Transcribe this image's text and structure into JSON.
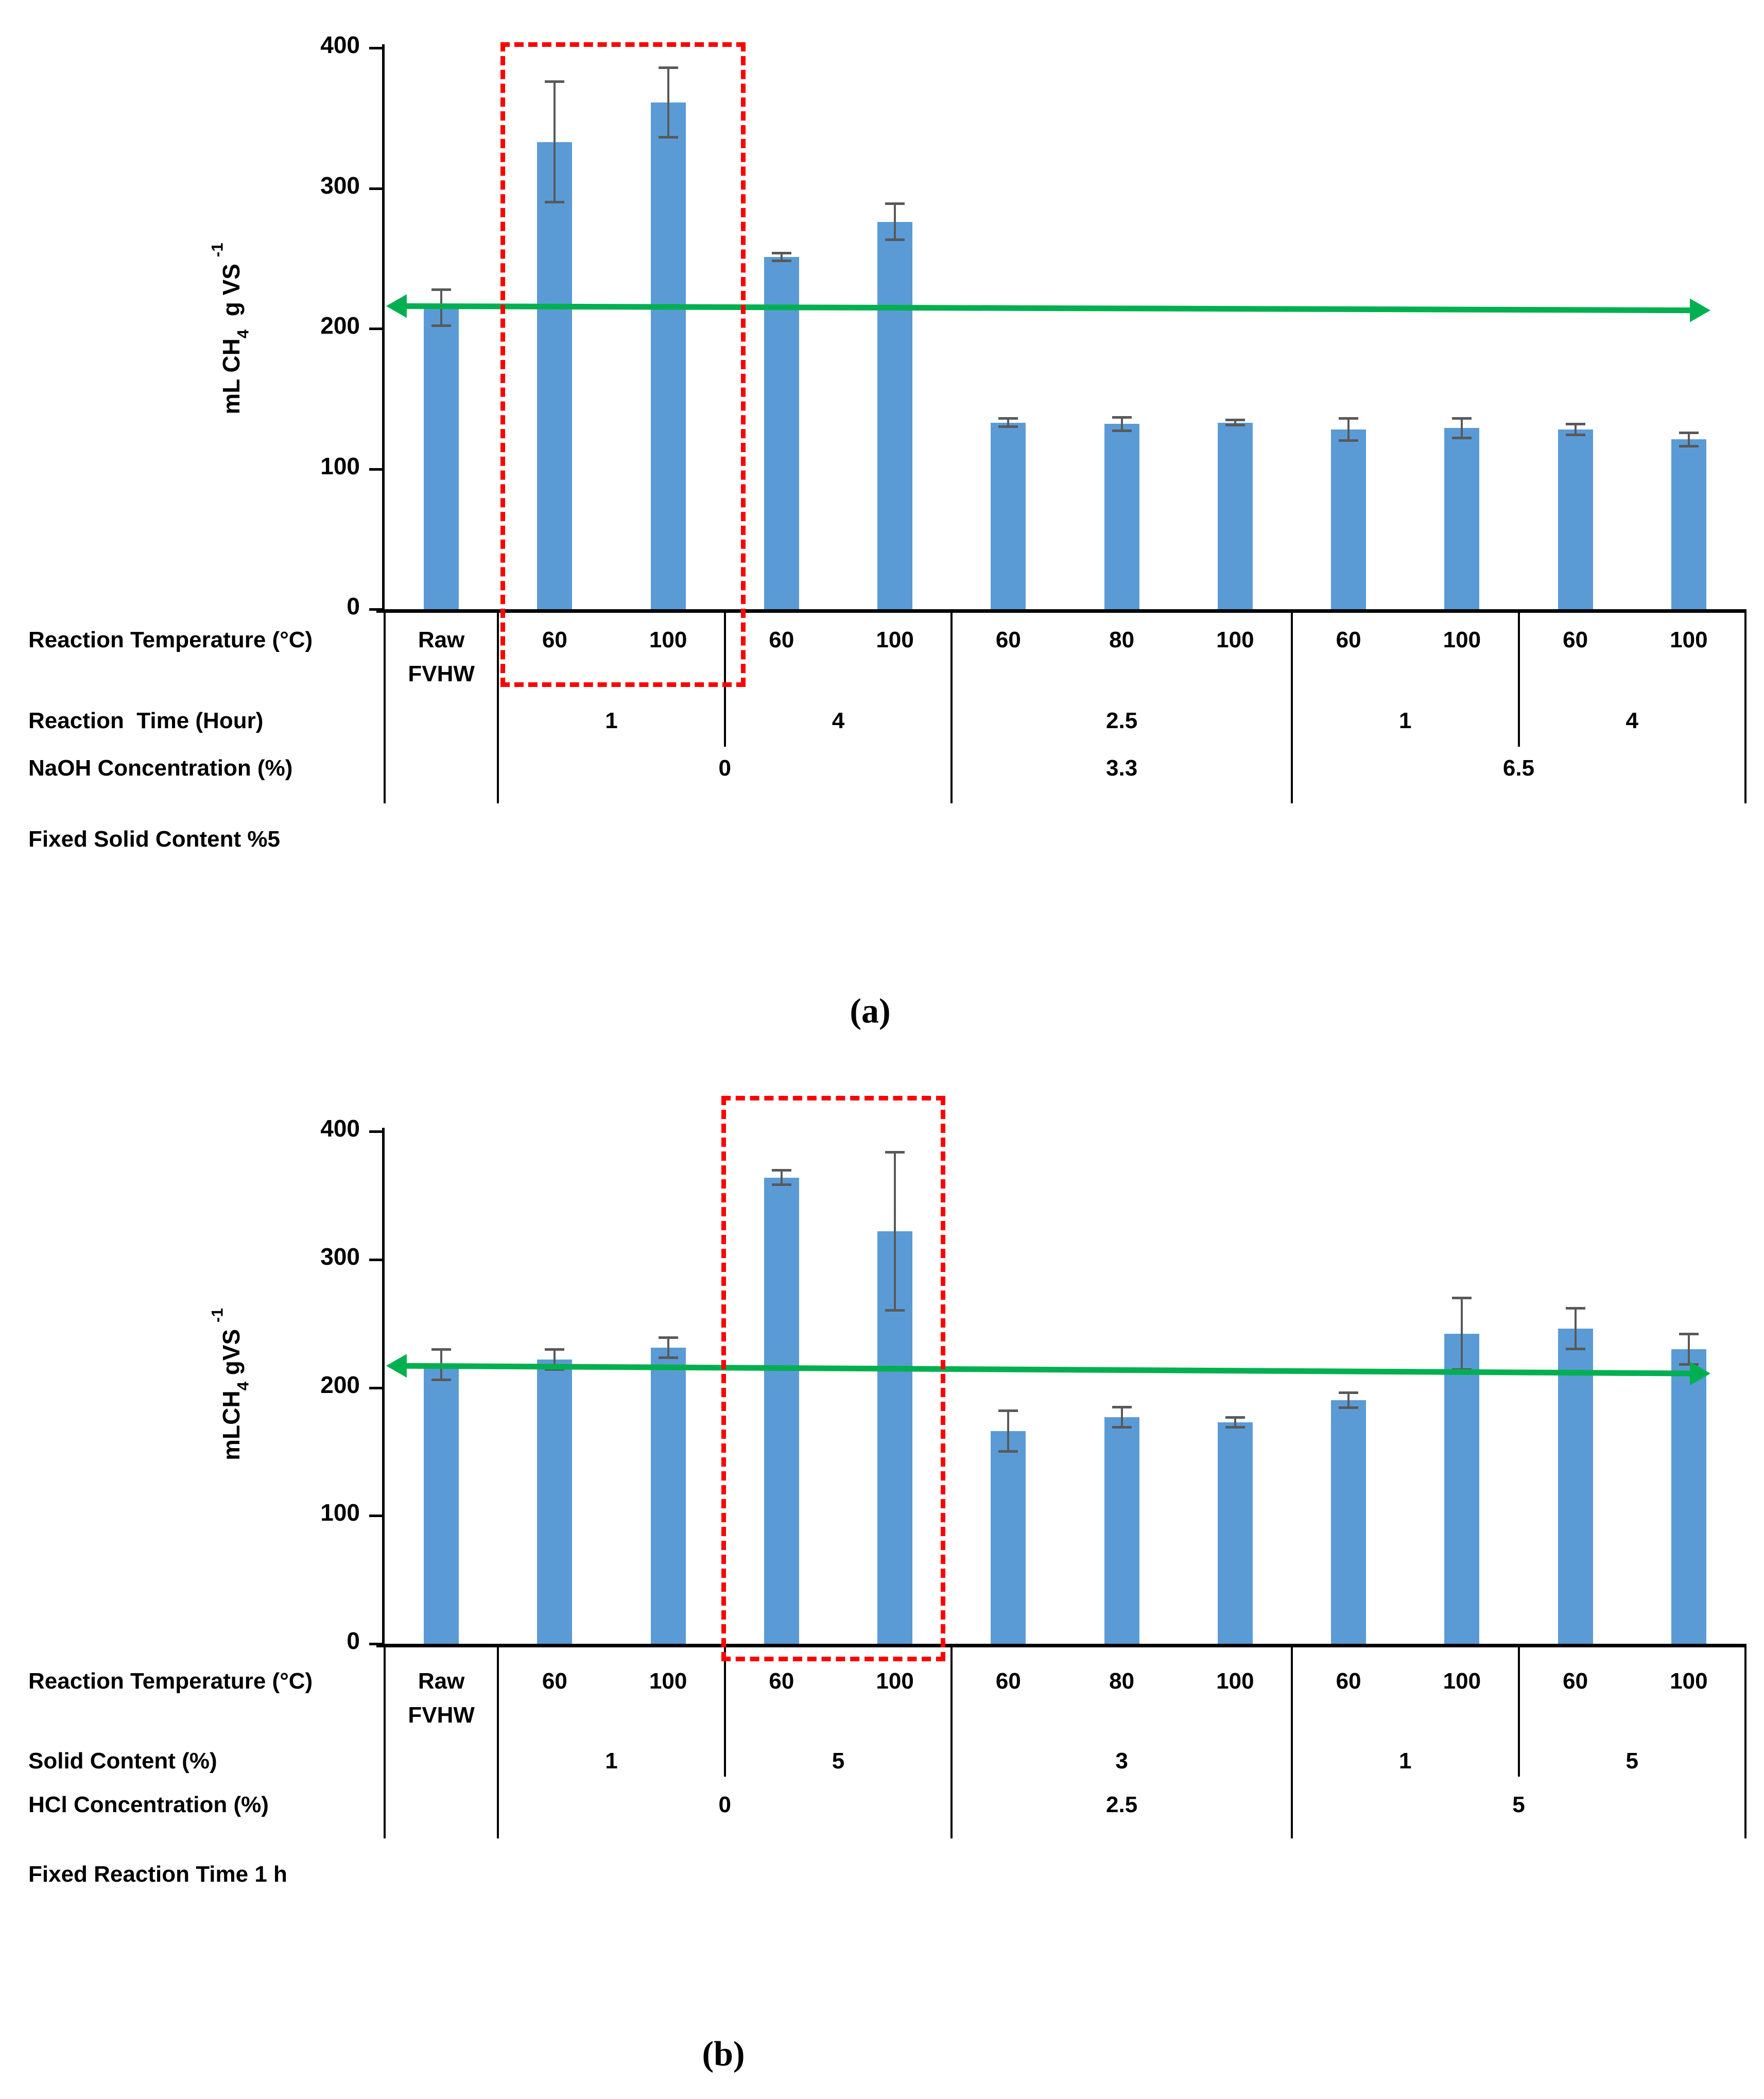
{
  "captions": {
    "a": "(a)",
    "b": "(b)"
  },
  "colors": {
    "bar": "#5B9BD5",
    "error_bar": "#595959",
    "arrow": "#00B050",
    "highlight_box": "#FF0000",
    "axis": "#000000"
  },
  "chart_data": [
    {
      "id": "a",
      "type": "bar",
      "title": "",
      "xlabel": "",
      "ylabel_text": "mL CH4 g VS -1",
      "ylabel_parts": {
        "pre": "mL CH",
        "sub": "4",
        "mid": "  g VS ",
        "sup": "-1"
      },
      "ylim": [
        0,
        400
      ],
      "yticks": [
        0,
        100,
        200,
        300,
        400
      ],
      "grid": false,
      "legend": null,
      "categories": [
        "Raw FVHW",
        "60",
        "100",
        "60",
        "100",
        "60",
        "80",
        "100",
        "60",
        "100",
        "60",
        "100"
      ],
      "values": [
        215,
        333,
        361,
        251,
        276,
        133,
        132,
        133,
        128,
        129,
        128,
        121
      ],
      "errors": [
        13,
        43,
        25,
        3,
        13,
        3,
        5,
        2,
        8,
        7,
        4,
        5
      ],
      "baseline_arrow": {
        "value_left": 216,
        "value_right": 213,
        "double_headed": true
      },
      "highlight_slots": [
        1,
        2
      ],
      "axis_rows": [
        {
          "label": "Reaction Temperature (°C)",
          "cells_from": "categories"
        },
        {
          "label": "Reaction  Time (Hour)",
          "cells": [
            {
              "text": "",
              "span": [
                0,
                0
              ]
            },
            {
              "text": "1",
              "span": [
                1,
                2
              ]
            },
            {
              "text": "4",
              "span": [
                3,
                4
              ]
            },
            {
              "text": "2.5",
              "span": [
                5,
                7
              ]
            },
            {
              "text": "1",
              "span": [
                8,
                9
              ]
            },
            {
              "text": "4",
              "span": [
                10,
                11
              ]
            }
          ]
        },
        {
          "label": "NaOH Concentration (%)",
          "cells": [
            {
              "text": "",
              "span": [
                0,
                0
              ]
            },
            {
              "text": "0",
              "span": [
                1,
                4
              ]
            },
            {
              "text": "3.3",
              "span": [
                5,
                7
              ]
            },
            {
              "text": "6.5",
              "span": [
                8,
                11
              ]
            }
          ]
        }
      ],
      "footnote": "Fixed Solid Content %5"
    },
    {
      "id": "b",
      "type": "bar",
      "title": "",
      "xlabel": "",
      "ylabel_text": "mLCH4 gVS -1",
      "ylabel_parts": {
        "pre": "mLCH",
        "sub": "4",
        "mid": " gVS ",
        "sup": "-1"
      },
      "ylim": [
        0,
        400
      ],
      "yticks": [
        0,
        100,
        200,
        300,
        400
      ],
      "grid": false,
      "legend": null,
      "categories": [
        "Raw FVHW",
        "60",
        "100",
        "60",
        "100",
        "60",
        "80",
        "100",
        "60",
        "100",
        "60",
        "100"
      ],
      "values": [
        218,
        222,
        231,
        364,
        322,
        166,
        177,
        173,
        190,
        242,
        246,
        230
      ],
      "errors": [
        12,
        8,
        8,
        6,
        62,
        16,
        8,
        4,
        6,
        28,
        16,
        12
      ],
      "baseline_arrow": {
        "value_left": 217,
        "value_right": 211,
        "double_headed": true
      },
      "highlight_slots": [
        3,
        4
      ],
      "axis_rows": [
        {
          "label": "Reaction Temperature (°C)",
          "cells_from": "categories"
        },
        {
          "label": "Solid Content (%)",
          "cells": [
            {
              "text": "",
              "span": [
                0,
                0
              ]
            },
            {
              "text": "1",
              "span": [
                1,
                2
              ]
            },
            {
              "text": "5",
              "span": [
                3,
                4
              ]
            },
            {
              "text": "3",
              "span": [
                5,
                7
              ]
            },
            {
              "text": "1",
              "span": [
                8,
                9
              ]
            },
            {
              "text": "5",
              "span": [
                10,
                11
              ]
            }
          ]
        },
        {
          "label": "HCl Concentration (%)",
          "cells": [
            {
              "text": "",
              "span": [
                0,
                0
              ]
            },
            {
              "text": "0",
              "span": [
                1,
                4
              ]
            },
            {
              "text": "2.5",
              "span": [
                5,
                7
              ]
            },
            {
              "text": "5",
              "span": [
                8,
                11
              ]
            }
          ]
        }
      ],
      "footnote": "Fixed Reaction Time 1 h"
    }
  ]
}
